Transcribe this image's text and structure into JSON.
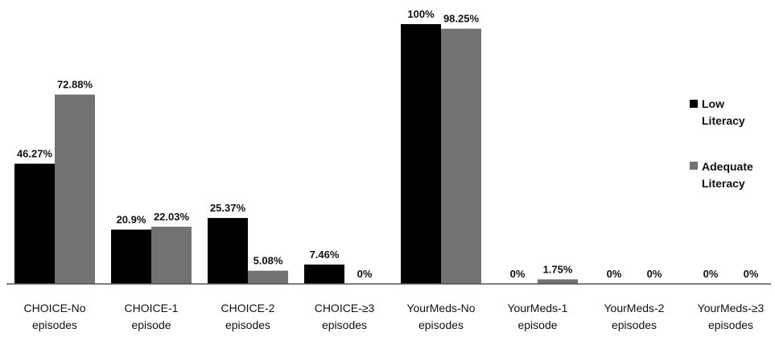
{
  "chart_data": {
    "type": "bar",
    "title": "",
    "xlabel": "",
    "ylabel": "",
    "ylim": [
      0,
      100
    ],
    "grid": false,
    "legend_position": "right",
    "categories": [
      [
        "CHOICE-No",
        "episodes"
      ],
      [
        "CHOICE-1",
        "episode"
      ],
      [
        "CHOICE-2",
        "episodes"
      ],
      [
        "CHOICE-≥3",
        "episodes"
      ],
      [
        "YourMeds-No",
        "episodes"
      ],
      [
        "YourMeds-1",
        "episode"
      ],
      [
        "YourMeds-2",
        "episodes"
      ],
      [
        "YourMeds-≥3",
        "episodes"
      ]
    ],
    "series": [
      {
        "name": [
          "Low",
          "Literacy"
        ],
        "color": "#000000",
        "values": [
          46.27,
          20.9,
          25.37,
          7.46,
          100,
          0,
          0,
          0
        ],
        "labels": [
          "46.27%",
          "20.9%",
          "25.37%",
          "7.46%",
          "100%",
          "0%",
          "0%",
          "0%"
        ]
      },
      {
        "name": [
          "Adequate",
          "Literacy"
        ],
        "color": "#727272",
        "values": [
          72.88,
          22.03,
          5.08,
          0,
          98.25,
          1.75,
          0,
          0
        ],
        "labels": [
          "72.88%",
          "22.03%",
          "5.08%",
          "0%",
          "98.25%",
          "1.75%",
          "0%",
          "0%"
        ]
      }
    ]
  }
}
